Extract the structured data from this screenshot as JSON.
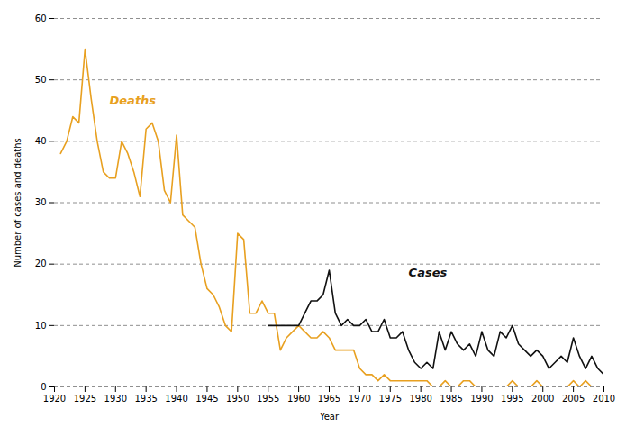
{
  "chart_data": {
    "type": "line",
    "xlabel": "Year",
    "ylabel": "Number of cases and deaths",
    "x": [
      1921,
      1922,
      1923,
      1924,
      1925,
      1926,
      1927,
      1928,
      1929,
      1930,
      1931,
      1932,
      1933,
      1934,
      1935,
      1936,
      1937,
      1938,
      1939,
      1940,
      1941,
      1942,
      1943,
      1944,
      1945,
      1946,
      1947,
      1948,
      1949,
      1950,
      1951,
      1952,
      1953,
      1954,
      1955,
      1956,
      1957,
      1958,
      1959,
      1960,
      1961,
      1962,
      1963,
      1964,
      1965,
      1966,
      1967,
      1968,
      1969,
      1970,
      1971,
      1972,
      1973,
      1974,
      1975,
      1976,
      1977,
      1978,
      1979,
      1980,
      1981,
      1982,
      1983,
      1984,
      1985,
      1986,
      1987,
      1988,
      1989,
      1990,
      1991,
      1992,
      1993,
      1994,
      1995,
      1996,
      1997,
      1998,
      1999,
      2000,
      2001,
      2002,
      2003,
      2004,
      2005,
      2006,
      2007,
      2008,
      2009,
      2010
    ],
    "series": [
      {
        "name": "Deaths",
        "color": "#E8A020",
        "values": [
          38,
          40,
          44,
          43,
          55,
          47,
          40,
          35,
          34,
          34,
          40,
          38,
          35,
          31,
          42,
          43,
          40,
          32,
          30,
          41,
          28,
          27,
          26,
          20,
          16,
          15,
          13,
          10,
          9,
          25,
          24,
          12,
          12,
          14,
          12,
          12,
          6,
          8,
          9,
          10,
          9,
          8,
          8,
          9,
          8,
          6,
          6,
          6,
          6,
          3,
          2,
          2,
          1,
          2,
          1,
          1,
          1,
          1,
          1,
          1,
          1,
          0,
          0,
          1,
          0,
          0,
          1,
          1,
          0,
          0,
          0,
          0,
          0,
          0,
          1,
          0,
          0,
          0,
          1,
          0,
          0,
          0,
          0,
          0,
          1,
          0,
          1,
          0,
          0,
          0
        ]
      },
      {
        "name": "Cases",
        "color": "#111111",
        "values": [
          null,
          null,
          null,
          null,
          null,
          null,
          null,
          null,
          null,
          null,
          null,
          null,
          null,
          null,
          null,
          null,
          null,
          null,
          null,
          null,
          null,
          null,
          null,
          null,
          null,
          null,
          null,
          null,
          null,
          null,
          null,
          null,
          null,
          null,
          10,
          10,
          10,
          10,
          10,
          10,
          12,
          14,
          14,
          15,
          19,
          12,
          10,
          11,
          10,
          10,
          11,
          9,
          9,
          11,
          8,
          8,
          9,
          6,
          4,
          3,
          4,
          3,
          9,
          6,
          9,
          7,
          6,
          7,
          5,
          9,
          6,
          5,
          9,
          8,
          10,
          7,
          6,
          5,
          6,
          5,
          3,
          4,
          5,
          4,
          8,
          5,
          3,
          5,
          3,
          2
        ]
      }
    ],
    "annotations": [
      {
        "text": "Deaths",
        "x": 1929,
        "y": 46,
        "color": "#E8A020"
      },
      {
        "text": "Cases",
        "x": 1978,
        "y": 18,
        "color": "#111111"
      }
    ],
    "xlim": [
      1920,
      2010
    ],
    "xticks": [
      1920,
      1925,
      1930,
      1935,
      1940,
      1945,
      1950,
      1955,
      1960,
      1965,
      1970,
      1975,
      1980,
      1985,
      1990,
      1995,
      2000,
      2005,
      2010
    ],
    "ylim": [
      0,
      60
    ],
    "yticks": [
      0,
      10,
      20,
      30,
      40,
      50,
      60
    ],
    "grid": true
  }
}
